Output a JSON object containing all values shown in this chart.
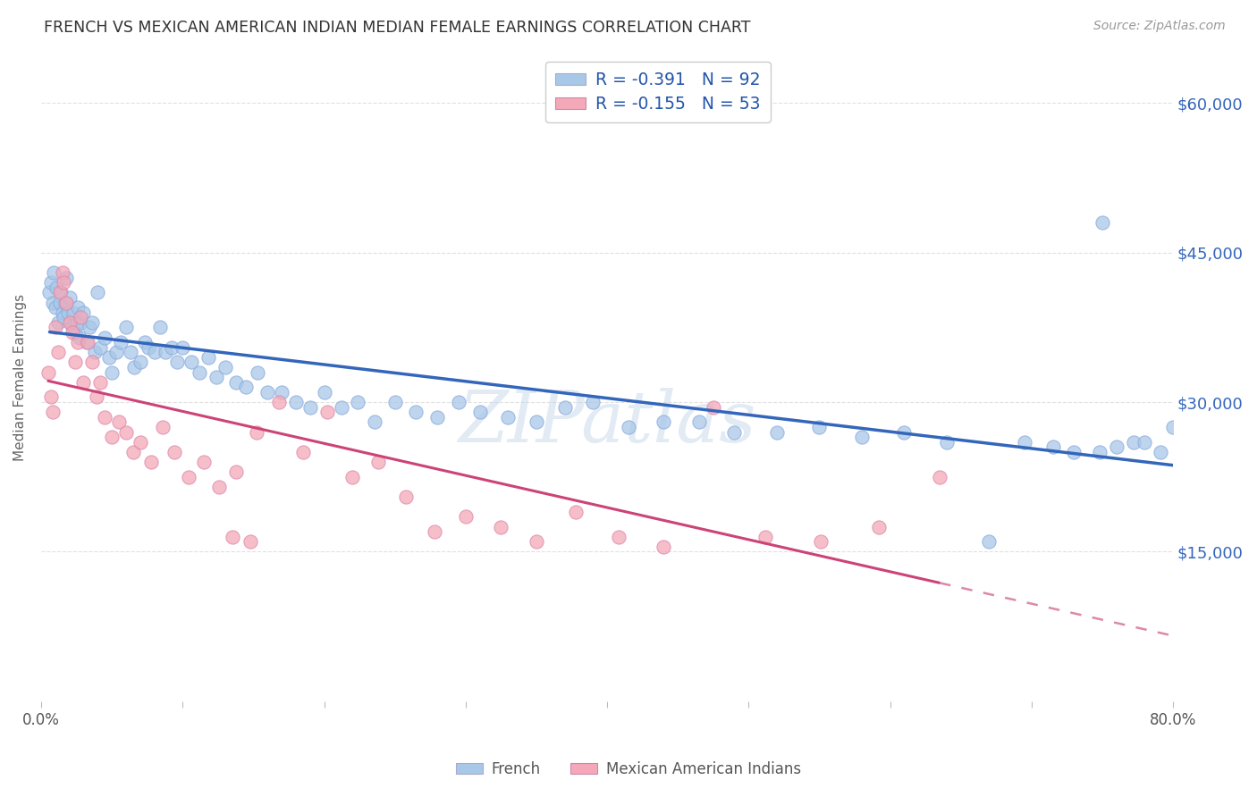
{
  "title": "FRENCH VS MEXICAN AMERICAN INDIAN MEDIAN FEMALE EARNINGS CORRELATION CHART",
  "source": "Source: ZipAtlas.com",
  "ylabel": "Median Female Earnings",
  "xlim": [
    0.0,
    0.8
  ],
  "ylim": [
    0,
    65000
  ],
  "yticks": [
    15000,
    30000,
    45000,
    60000
  ],
  "ytick_labels": [
    "$15,000",
    "$30,000",
    "$45,000",
    "$60,000"
  ],
  "xticks": [
    0.0,
    0.1,
    0.2,
    0.3,
    0.4,
    0.5,
    0.6,
    0.7,
    0.8
  ],
  "xtick_labels": [
    "0.0%",
    "",
    "",
    "",
    "",
    "",
    "",
    "",
    "80.0%"
  ],
  "watermark": "ZIPatlas",
  "blue_color": "#a8c8e8",
  "pink_color": "#f4a8b8",
  "blue_line_color": "#3366bb",
  "pink_line_color": "#cc4477",
  "pink_dash_color": "#dd88aa",
  "background_color": "#ffffff",
  "grid_color": "#e0e0e0",
  "title_color": "#333333",
  "legend_label1": "R = -0.391   N = 92",
  "legend_label2": "R = -0.155   N = 53",
  "french_x": [
    0.006,
    0.007,
    0.008,
    0.009,
    0.01,
    0.011,
    0.012,
    0.013,
    0.014,
    0.015,
    0.016,
    0.017,
    0.018,
    0.019,
    0.02,
    0.021,
    0.022,
    0.023,
    0.024,
    0.025,
    0.026,
    0.027,
    0.028,
    0.03,
    0.032,
    0.034,
    0.036,
    0.038,
    0.04,
    0.042,
    0.045,
    0.048,
    0.05,
    0.053,
    0.056,
    0.06,
    0.063,
    0.066,
    0.07,
    0.073,
    0.076,
    0.08,
    0.084,
    0.088,
    0.092,
    0.096,
    0.1,
    0.106,
    0.112,
    0.118,
    0.124,
    0.13,
    0.138,
    0.145,
    0.153,
    0.16,
    0.17,
    0.18,
    0.19,
    0.2,
    0.212,
    0.224,
    0.236,
    0.25,
    0.265,
    0.28,
    0.295,
    0.31,
    0.33,
    0.35,
    0.37,
    0.39,
    0.415,
    0.44,
    0.465,
    0.49,
    0.52,
    0.55,
    0.58,
    0.61,
    0.64,
    0.67,
    0.695,
    0.715,
    0.73,
    0.748,
    0.76,
    0.772,
    0.78,
    0.791,
    0.8,
    0.75
  ],
  "french_y": [
    41000,
    42000,
    40000,
    43000,
    39500,
    41500,
    38000,
    40000,
    41000,
    39000,
    38500,
    40000,
    42500,
    39000,
    40500,
    38000,
    37500,
    39000,
    37000,
    38000,
    39500,
    36500,
    38000,
    39000,
    36000,
    37500,
    38000,
    35000,
    41000,
    35500,
    36500,
    34500,
    33000,
    35000,
    36000,
    37500,
    35000,
    33500,
    34000,
    36000,
    35500,
    35000,
    37500,
    35000,
    35500,
    34000,
    35500,
    34000,
    33000,
    34500,
    32500,
    33500,
    32000,
    31500,
    33000,
    31000,
    31000,
    30000,
    29500,
    31000,
    29500,
    30000,
    28000,
    30000,
    29000,
    28500,
    30000,
    29000,
    28500,
    28000,
    29500,
    30000,
    27500,
    28000,
    28000,
    27000,
    27000,
    27500,
    26500,
    27000,
    26000,
    16000,
    26000,
    25500,
    25000,
    25000,
    25500,
    26000,
    26000,
    25000,
    27500,
    48000
  ],
  "mexican_x": [
    0.005,
    0.007,
    0.008,
    0.01,
    0.012,
    0.013,
    0.015,
    0.016,
    0.018,
    0.02,
    0.022,
    0.024,
    0.026,
    0.028,
    0.03,
    0.033,
    0.036,
    0.039,
    0.042,
    0.045,
    0.05,
    0.055,
    0.06,
    0.065,
    0.07,
    0.078,
    0.086,
    0.094,
    0.104,
    0.115,
    0.126,
    0.138,
    0.152,
    0.168,
    0.185,
    0.202,
    0.22,
    0.238,
    0.258,
    0.278,
    0.3,
    0.325,
    0.35,
    0.378,
    0.408,
    0.44,
    0.475,
    0.512,
    0.551,
    0.592,
    0.635,
    0.135,
    0.148
  ],
  "mexican_y": [
    33000,
    30500,
    29000,
    37500,
    35000,
    41000,
    43000,
    42000,
    40000,
    38000,
    37000,
    34000,
    36000,
    38500,
    32000,
    36000,
    34000,
    30500,
    32000,
    28500,
    26500,
    28000,
    27000,
    25000,
    26000,
    24000,
    27500,
    25000,
    22500,
    24000,
    21500,
    23000,
    27000,
    30000,
    25000,
    29000,
    22500,
    24000,
    20500,
    17000,
    18500,
    17500,
    16000,
    19000,
    16500,
    15500,
    29500,
    16500,
    16000,
    17500,
    22500,
    16500,
    16000
  ]
}
